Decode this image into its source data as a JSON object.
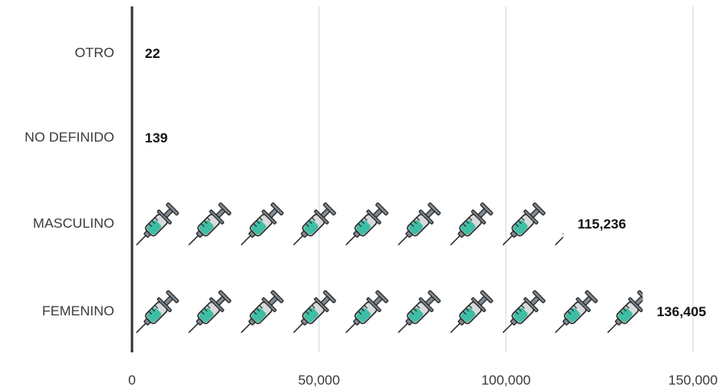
{
  "chart_data": {
    "type": "bar",
    "orientation": "horizontal",
    "pictograph": true,
    "icon": "syringe-icon",
    "icon_unit": 14000,
    "categories": [
      "FEMENINO",
      "MASCULINO",
      "NO DEFINIDO",
      "OTRO"
    ],
    "values": [
      136405,
      115236,
      139,
      22
    ],
    "value_labels": [
      "136,405",
      "115,236",
      "139",
      "22"
    ],
    "xlim": [
      0,
      150000
    ],
    "xticks": [
      0,
      50000,
      100000,
      150000
    ],
    "xtick_labels": [
      "0",
      "50,000",
      "100,000",
      "150,000"
    ],
    "grid": true,
    "title": "",
    "xlabel": "",
    "ylabel": "",
    "colors": {
      "liquid": "#3dbea4",
      "barrel": "#d8dbdc",
      "metal": "#7f8a93",
      "outline": "#2b2b2b",
      "grid": "#c9dbe3",
      "axis": "#333333"
    }
  }
}
